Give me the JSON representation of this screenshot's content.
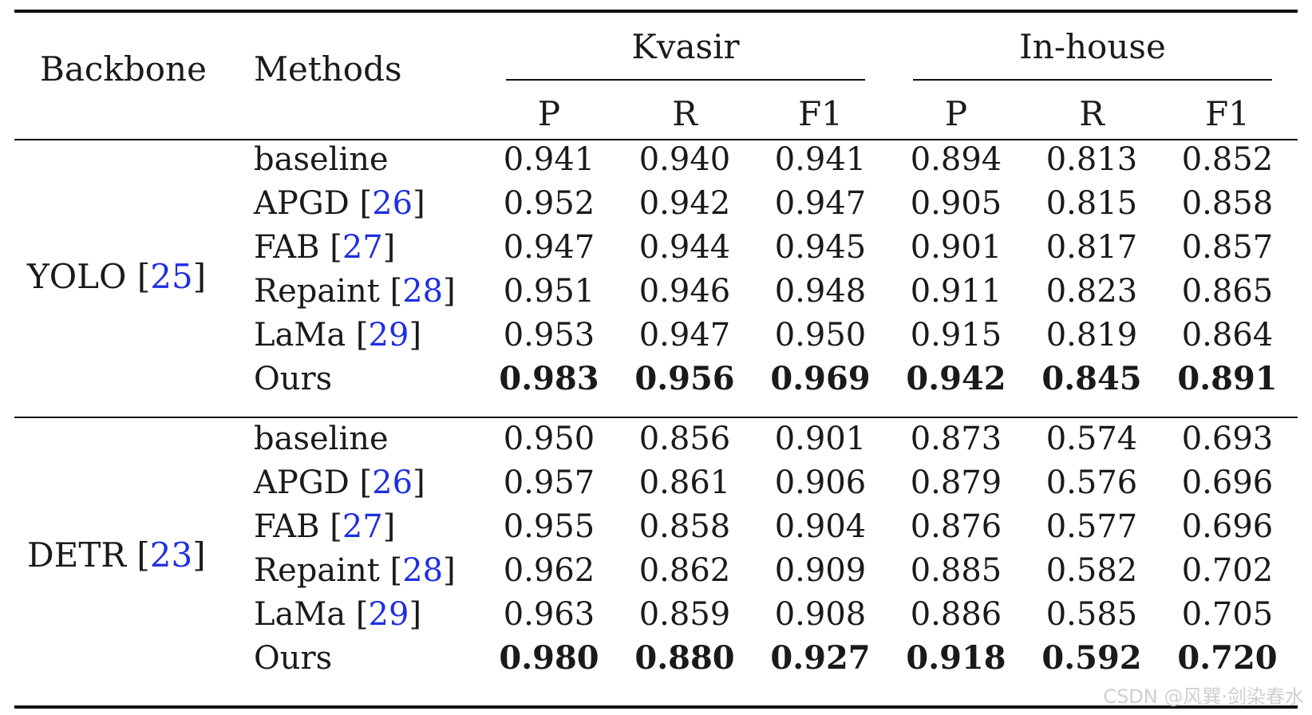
{
  "header": {
    "backbone": "Backbone",
    "methods": "Methods",
    "groups": [
      "Kvasir",
      "In-house"
    ],
    "metrics": [
      "P",
      "R",
      "F1",
      "P",
      "R",
      "F1"
    ]
  },
  "blocks": [
    {
      "backbone": "YOLO",
      "backbone_cite": "25",
      "rows": [
        {
          "method": "baseline",
          "cite": "",
          "values": [
            "0.941",
            "0.940",
            "0.941",
            "0.894",
            "0.813",
            "0.852"
          ]
        },
        {
          "method": "APGD",
          "cite": "26",
          "values": [
            "0.952",
            "0.942",
            "0.947",
            "0.905",
            "0.815",
            "0.858"
          ]
        },
        {
          "method": "FAB",
          "cite": "27",
          "values": [
            "0.947",
            "0.944",
            "0.945",
            "0.901",
            "0.817",
            "0.857"
          ]
        },
        {
          "method": "Repaint",
          "cite": "28",
          "values": [
            "0.951",
            "0.946",
            "0.948",
            "0.911",
            "0.823",
            "0.865"
          ]
        },
        {
          "method": "LaMa",
          "cite": "29",
          "values": [
            "0.953",
            "0.947",
            "0.950",
            "0.915",
            "0.819",
            "0.864"
          ]
        },
        {
          "method": "Ours",
          "cite": "",
          "values": [
            "0.983",
            "0.956",
            "0.969",
            "0.942",
            "0.845",
            "0.891"
          ]
        }
      ]
    },
    {
      "backbone": "DETR",
      "backbone_cite": "23",
      "rows": [
        {
          "method": "baseline",
          "cite": "",
          "values": [
            "0.950",
            "0.856",
            "0.901",
            "0.873",
            "0.574",
            "0.693"
          ]
        },
        {
          "method": "APGD",
          "cite": "26",
          "values": [
            "0.957",
            "0.861",
            "0.906",
            "0.879",
            "0.576",
            "0.696"
          ]
        },
        {
          "method": "FAB",
          "cite": "27",
          "values": [
            "0.955",
            "0.858",
            "0.904",
            "0.876",
            "0.577",
            "0.696"
          ]
        },
        {
          "method": "Repaint",
          "cite": "28",
          "values": [
            "0.962",
            "0.862",
            "0.909",
            "0.885",
            "0.582",
            "0.702"
          ]
        },
        {
          "method": "LaMa",
          "cite": "29",
          "values": [
            "0.963",
            "0.859",
            "0.908",
            "0.886",
            "0.585",
            "0.705"
          ]
        },
        {
          "method": "Ours",
          "cite": "",
          "values": [
            "0.980",
            "0.880",
            "0.927",
            "0.918",
            "0.592",
            "0.720"
          ]
        }
      ]
    }
  ],
  "watermark": "CSDN @风巽·剑染春水"
}
